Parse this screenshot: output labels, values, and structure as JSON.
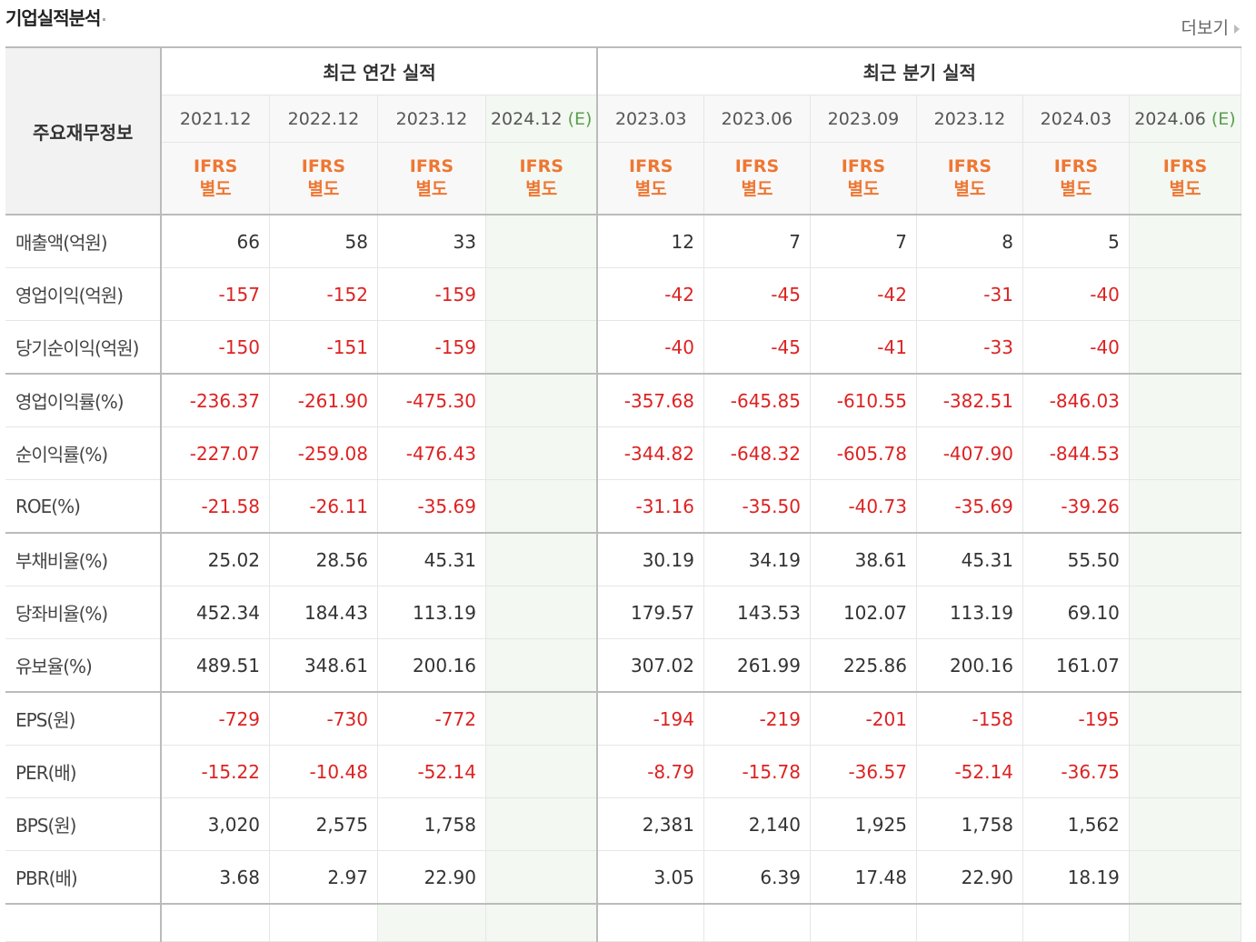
{
  "header": {
    "title": "기업실적분석",
    "more_label": "더보기"
  },
  "table": {
    "corner_label": "주요재무정보",
    "group_annual": "최근 연간 실적",
    "group_quarter": "최근 분기 실적",
    "periods": [
      "2021.12",
      "2022.12",
      "2023.12",
      "2024.12",
      "2023.03",
      "2023.06",
      "2023.09",
      "2023.12",
      "2024.03",
      "2024.06"
    ],
    "estimate_mark": "(E)",
    "ifrs": "IFRS",
    "standalone": "별도",
    "rows": [
      {
        "label": "매출액(억원)",
        "values": [
          "66",
          "58",
          "33",
          "",
          "12",
          "7",
          "7",
          "8",
          "5",
          ""
        ]
      },
      {
        "label": "영업이익(억원)",
        "values": [
          "-157",
          "-152",
          "-159",
          "",
          "-42",
          "-45",
          "-42",
          "-31",
          "-40",
          ""
        ]
      },
      {
        "label": "당기순이익(억원)",
        "values": [
          "-150",
          "-151",
          "-159",
          "",
          "-40",
          "-45",
          "-41",
          "-33",
          "-40",
          ""
        ]
      },
      {
        "label": "영업이익률(%)",
        "values": [
          "-236.37",
          "-261.90",
          "-475.30",
          "",
          "-357.68",
          "-645.85",
          "-610.55",
          "-382.51",
          "-846.03",
          ""
        ]
      },
      {
        "label": "순이익률(%)",
        "values": [
          "-227.07",
          "-259.08",
          "-476.43",
          "",
          "-344.82",
          "-648.32",
          "-605.78",
          "-407.90",
          "-844.53",
          ""
        ]
      },
      {
        "label": "ROE(%)",
        "values": [
          "-21.58",
          "-26.11",
          "-35.69",
          "",
          "-31.16",
          "-35.50",
          "-40.73",
          "-35.69",
          "-39.26",
          ""
        ]
      },
      {
        "label": "부채비율(%)",
        "values": [
          "25.02",
          "28.56",
          "45.31",
          "",
          "30.19",
          "34.19",
          "38.61",
          "45.31",
          "55.50",
          ""
        ]
      },
      {
        "label": "당좌비율(%)",
        "values": [
          "452.34",
          "184.43",
          "113.19",
          "",
          "179.57",
          "143.53",
          "102.07",
          "113.19",
          "69.10",
          ""
        ]
      },
      {
        "label": "유보율(%)",
        "values": [
          "489.51",
          "348.61",
          "200.16",
          "",
          "307.02",
          "261.99",
          "225.86",
          "200.16",
          "161.07",
          ""
        ]
      },
      {
        "label": "EPS(원)",
        "values": [
          "-729",
          "-730",
          "-772",
          "",
          "-194",
          "-219",
          "-201",
          "-158",
          "-195",
          ""
        ]
      },
      {
        "label": "PER(배)",
        "values": [
          "-15.22",
          "-10.48",
          "-52.14",
          "",
          "-8.79",
          "-15.78",
          "-36.57",
          "-52.14",
          "-36.75",
          ""
        ]
      },
      {
        "label": "BPS(원)",
        "values": [
          "3,020",
          "2,575",
          "1,758",
          "",
          "2,381",
          "2,140",
          "1,925",
          "1,758",
          "1,562",
          ""
        ]
      },
      {
        "label": "PBR(배)",
        "values": [
          "3.68",
          "2.97",
          "22.90",
          "",
          "3.05",
          "6.39",
          "17.48",
          "22.90",
          "18.19",
          ""
        ]
      }
    ]
  },
  "colors": {
    "negative": "#dd2222",
    "ifrs": "#ee7733",
    "estimate_bg": "#f3f8f2",
    "estimate_mark": "#5a9e4e"
  }
}
